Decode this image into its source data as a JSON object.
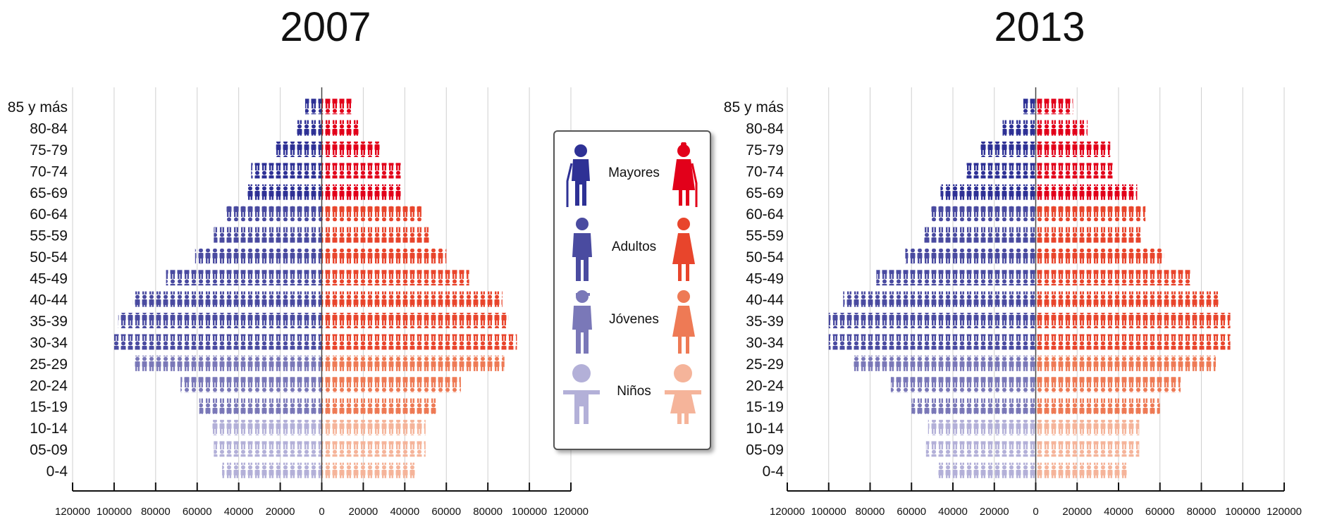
{
  "chart_data": [
    {
      "type": "bar",
      "title": "2007",
      "categories": [
        "85 y más",
        "80-84",
        "75-79",
        "70-74",
        "65-69",
        "60-64",
        "55-59",
        "50-54",
        "45-49",
        "40-44",
        "35-39",
        "30-34",
        "25-29",
        "20-24",
        "15-19",
        "10-14",
        "05-09",
        "0-4"
      ],
      "series": [
        {
          "name": "Hombres",
          "values": [
            8000,
            12000,
            22000,
            34000,
            36000,
            46000,
            52000,
            61000,
            75000,
            91000,
            98000,
            100000,
            90000,
            68000,
            59000,
            53000,
            52000,
            48000
          ]
        },
        {
          "name": "Mujeres",
          "values": [
            15000,
            18000,
            28000,
            39000,
            39000,
            48000,
            52000,
            60000,
            71000,
            87000,
            90000,
            94000,
            88000,
            67000,
            56000,
            50000,
            50000,
            45000
          ]
        }
      ],
      "xticks": [
        "120000",
        "100000",
        "80000",
        "60000",
        "40000",
        "20000",
        "0",
        "20000",
        "40000",
        "60000",
        "80000",
        "100000",
        "120000"
      ],
      "xlim": [
        -120000,
        120000
      ]
    },
    {
      "type": "bar",
      "title": "2013",
      "categories": [
        "85 y más",
        "80-84",
        "75-79",
        "70-74",
        "65-69",
        "60-64",
        "55-59",
        "50-54",
        "45-49",
        "40-44",
        "35-39",
        "30-34",
        "25-29",
        "20-24",
        "15-19",
        "10-14",
        "05-09",
        "0-4"
      ],
      "series": [
        {
          "name": "Hombres",
          "values": [
            6000,
            16000,
            27000,
            34000,
            46000,
            51000,
            54000,
            63000,
            77000,
            93000,
            100000,
            100000,
            88000,
            70000,
            60000,
            52000,
            53000,
            47000
          ]
        },
        {
          "name": "Mujeres",
          "values": [
            18000,
            25000,
            36000,
            38000,
            49000,
            53000,
            51000,
            62000,
            75000,
            89000,
            94000,
            94000,
            87000,
            70000,
            60000,
            50000,
            50000,
            44000
          ]
        }
      ],
      "xticks": [
        "120000",
        "100000",
        "80000",
        "60000",
        "40000",
        "20000",
        "0",
        "20000",
        "40000",
        "60000",
        "80000",
        "100000",
        "120000"
      ],
      "xlim": [
        -120000,
        120000
      ]
    }
  ],
  "legend": {
    "items": [
      {
        "label": "Mayores",
        "male_color": "#2e3195",
        "female_color": "#e2001a"
      },
      {
        "label": "Adultos",
        "male_color": "#4a4ba0",
        "female_color": "#e8452c"
      },
      {
        "label": "Jóvenes",
        "male_color": "#7a78b8",
        "female_color": "#ee7a55"
      },
      {
        "label": "Niños",
        "male_color": "#b3b0d8",
        "female_color": "#f5b49a"
      }
    ]
  },
  "colors": {
    "mayores_m": "#2e3195",
    "mayores_f": "#e2001a",
    "adultos_m": "#4a4ba0",
    "adultos_f": "#e8452c",
    "jovenes_m": "#7a78b8",
    "jovenes_f": "#ee7a55",
    "ninos_m": "#b3b0d8",
    "ninos_f": "#f5b49a"
  }
}
